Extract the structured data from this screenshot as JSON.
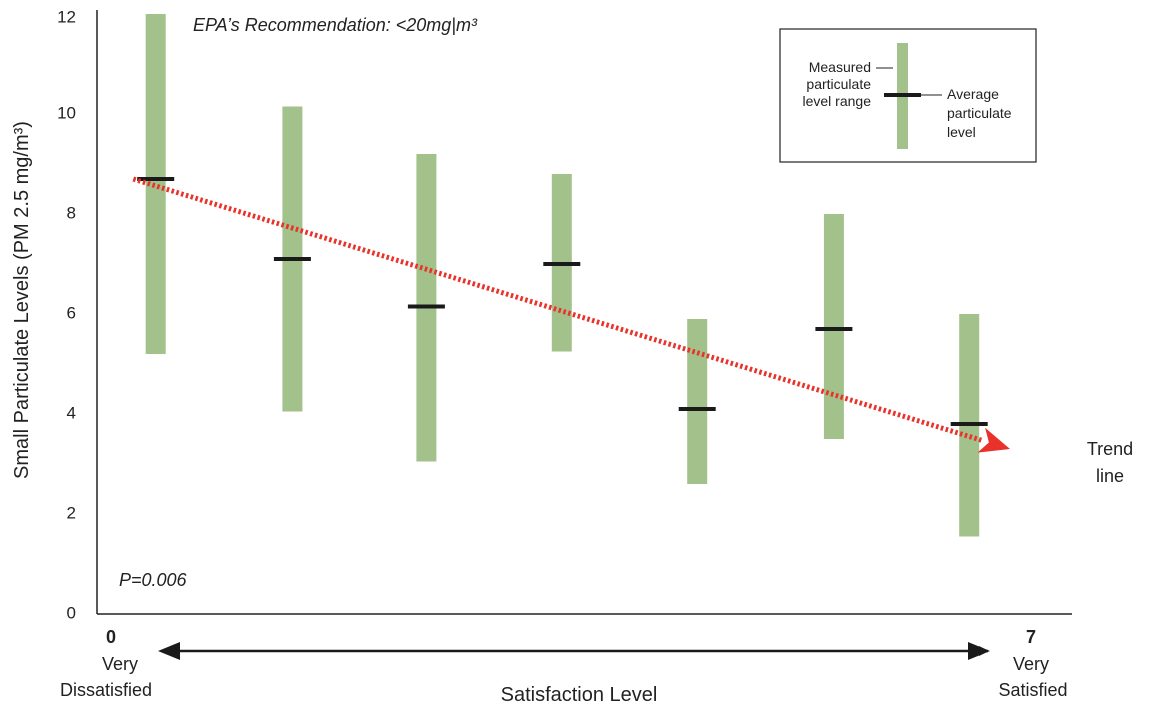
{
  "chart_data": {
    "type": "range-bar",
    "ylabel": "Small Particulate Levels (PM 2.5 mg/m³)",
    "xlabel": "Satisfaction Level",
    "yticks": [
      "0",
      "2",
      "4",
      "6",
      "8",
      "10",
      "12"
    ],
    "ylim": [
      0,
      12
    ],
    "xlim": [
      0,
      7
    ],
    "annotations": {
      "epa": "EPA’s Recommendation: <20mg|m³",
      "pvalue": "P=0.006",
      "trend_label_1": "Trend",
      "trend_label_2": "line"
    },
    "x_start": {
      "num": "0",
      "label": "Very",
      "label2": "Dissatisfied"
    },
    "x_end": {
      "num": "7",
      "label": "Very",
      "label2": "Satisfied"
    },
    "legend": {
      "range_lines": [
        "Measured",
        "particulate",
        "level range"
      ],
      "avg_lines": [
        "Average",
        "particulate",
        "level"
      ]
    },
    "series": [
      {
        "x": 0.34,
        "min": 5.2,
        "max": 12.0,
        "avg": 8.7
      },
      {
        "x": 1.38,
        "min": 4.05,
        "max": 10.15,
        "avg": 7.1
      },
      {
        "x": 2.4,
        "min": 3.05,
        "max": 9.2,
        "avg": 6.15
      },
      {
        "x": 3.43,
        "min": 5.25,
        "max": 8.8,
        "avg": 7.0
      },
      {
        "x": 4.46,
        "min": 2.6,
        "max": 5.9,
        "avg": 4.1
      },
      {
        "x": 5.5,
        "min": 3.5,
        "max": 8.0,
        "avg": 5.7
      },
      {
        "x": 6.53,
        "min": 1.55,
        "max": 6.0,
        "avg": 3.8
      }
    ],
    "trend": {
      "x0": 0.17,
      "y0": 8.7,
      "x1": 6.84,
      "y1": 3.3
    },
    "colors": {
      "range": "#a3c18a",
      "avg": "#1a1a1a",
      "trend": "#e8322a",
      "axis": "#222222"
    }
  }
}
